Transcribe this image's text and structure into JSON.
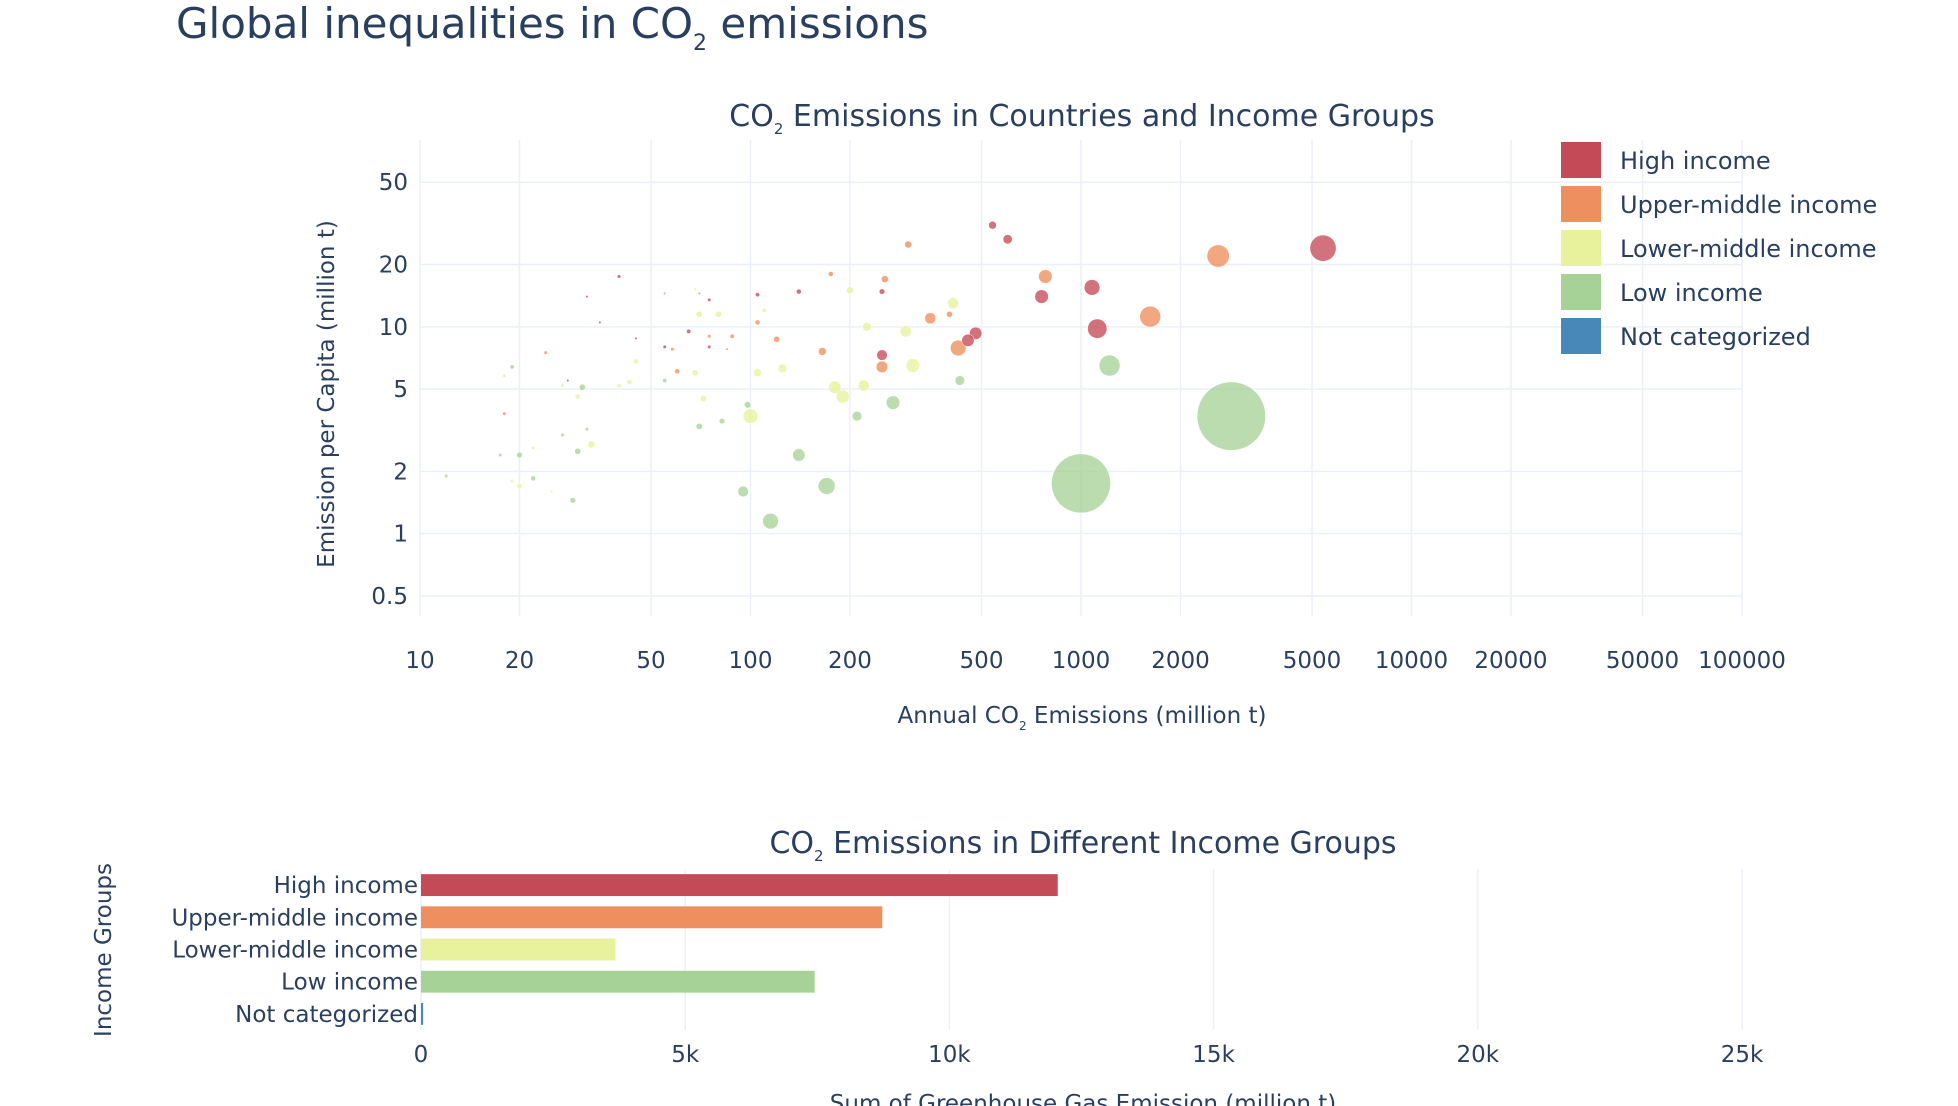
{
  "page": {
    "title_main": "Global inequalities in CO",
    "title_sub": "2",
    "title_rest": " emissions"
  },
  "chart_data": [
    {
      "type": "scatter",
      "title": {
        "pre": "CO",
        "sub": "2",
        "post": " Emissions in Countries and Income Groups"
      },
      "xlabel": {
        "pre": "Annual CO",
        "sub": "2",
        "post": " Emissions (million t)"
      },
      "ylabel": "Emission per Capita (million t)",
      "x_scale": "log",
      "y_scale": "log",
      "xlim": [
        10,
        100000
      ],
      "ylim": [
        0.4,
        80
      ],
      "x_ticks": [
        10,
        20,
        50,
        100,
        200,
        500,
        1000,
        2000,
        5000,
        10000,
        20000,
        50000,
        100000
      ],
      "x_tick_labels": [
        "10",
        "20",
        "50",
        "100",
        "200",
        "500",
        "1000",
        "2000",
        "5000",
        "10000",
        "20000",
        "50000",
        "100000"
      ],
      "y_ticks": [
        0.5,
        1,
        2,
        5,
        10,
        20,
        50
      ],
      "y_tick_labels": [
        "0.5",
        "1",
        "2",
        "5",
        "10",
        "20",
        "50"
      ],
      "grid": true,
      "legend_position": "top-right",
      "legend": [
        {
          "name": "High income",
          "color": "#c44a57"
        },
        {
          "name": "Upper-middle income",
          "color": "#ed8f5e"
        },
        {
          "name": "Lower-middle income",
          "color": "#e8f29c"
        },
        {
          "name": "Low income",
          "color": "#a6d297"
        },
        {
          "name": "Not categorized",
          "color": "#4888b8"
        }
      ],
      "series": [
        {
          "name": "High income",
          "color": "#c44a57",
          "points": [
            [
              5400,
              24,
              110
            ],
            [
              1120,
              9.8,
              60
            ],
            [
              1080,
              15.5,
              40
            ],
            [
              760,
              14,
              30
            ],
            [
              600,
              26.5,
              14
            ],
            [
              540,
              31,
              10
            ],
            [
              480,
              9.3,
              25
            ],
            [
              455,
              8.6,
              25
            ],
            [
              250,
              7.3,
              18
            ],
            [
              250,
              14.8,
              5
            ],
            [
              140,
              14.8,
              4
            ],
            [
              105,
              14.3,
              3
            ],
            [
              75,
              13.5,
              2
            ],
            [
              65,
              9.5,
              3
            ],
            [
              55,
              8,
              2
            ],
            [
              40,
              17.5,
              2
            ],
            [
              35,
              10.5,
              1
            ],
            [
              32,
              14,
              1
            ],
            [
              28,
              5.5,
              1
            ],
            [
              75,
              8,
              2
            ],
            [
              45,
              8.8,
              1
            ]
          ]
        },
        {
          "name": "Upper-middle income",
          "color": "#ed8f5e",
          "points": [
            [
              2600,
              22,
              80
            ],
            [
              1620,
              11.2,
              70
            ],
            [
              780,
              17.5,
              30
            ],
            [
              425,
              7.9,
              40
            ],
            [
              350,
              11,
              20
            ],
            [
              300,
              25,
              8
            ],
            [
              250,
              6.4,
              22
            ],
            [
              255,
              17,
              8
            ],
            [
              165,
              7.6,
              10
            ],
            [
              120,
              8.7,
              6
            ],
            [
              105,
              10.5,
              4
            ],
            [
              88,
              9,
              3
            ],
            [
              75,
              9,
              2
            ],
            [
              60,
              6.1,
              4
            ],
            [
              58,
              7.8,
              2
            ],
            [
              175,
              18,
              4
            ],
            [
              400,
              11.5,
              6
            ],
            [
              70,
              14.5,
              1
            ],
            [
              24,
              7.5,
              2
            ],
            [
              55,
              14.5,
              1
            ],
            [
              18,
              3.8,
              2
            ],
            [
              85,
              7.8,
              1
            ]
          ]
        },
        {
          "name": "Lower-middle income",
          "color": "#e8f29c",
          "points": [
            [
              410,
              13,
              20
            ],
            [
              310,
              6.5,
              30
            ],
            [
              295,
              9.5,
              20
            ],
            [
              225,
              10,
              12
            ],
            [
              220,
              5.2,
              20
            ],
            [
              200,
              15,
              8
            ],
            [
              190,
              4.6,
              28
            ],
            [
              180,
              5.1,
              25
            ],
            [
              125,
              6.3,
              12
            ],
            [
              105,
              6,
              10
            ],
            [
              100,
              3.7,
              35
            ],
            [
              80,
              11.5,
              6
            ],
            [
              72,
              4.5,
              6
            ],
            [
              68,
              6,
              6
            ],
            [
              70,
              11.5,
              6
            ],
            [
              45,
              6.8,
              4
            ],
            [
              40,
              5.2,
              3
            ],
            [
              33,
              2.7,
              8
            ],
            [
              30,
              4.6,
              4
            ],
            [
              27,
              5.2,
              2
            ],
            [
              22,
              2.6,
              2
            ],
            [
              20,
              1.7,
              4
            ],
            [
              19,
              1.8,
              2
            ],
            [
              18,
              5.8,
              2
            ],
            [
              110,
              12,
              3
            ],
            [
              25,
              1.6,
              1
            ],
            [
              43,
              5.4,
              4
            ],
            [
              68,
              15.2,
              1
            ]
          ]
        },
        {
          "name": "Low income",
          "color": "#a6d297",
          "points": [
            [
              2850,
              3.7,
              750
            ],
            [
              1000,
              1.75,
              560
            ],
            [
              1220,
              6.5,
              70
            ],
            [
              430,
              5.5,
              15
            ],
            [
              270,
              4.3,
              30
            ],
            [
              210,
              3.7,
              15
            ],
            [
              170,
              1.7,
              45
            ],
            [
              140,
              2.4,
              25
            ],
            [
              115,
              1.15,
              40
            ],
            [
              95,
              1.6,
              18
            ],
            [
              98,
              4.2,
              7
            ],
            [
              82,
              3.5,
              5
            ],
            [
              70,
              3.3,
              6
            ],
            [
              55,
              5.5,
              3
            ],
            [
              31,
              5.1,
              6
            ],
            [
              30,
              2.5,
              6
            ],
            [
              29,
              1.45,
              5
            ],
            [
              22,
              1.85,
              4
            ],
            [
              20,
              2.4,
              5
            ],
            [
              19,
              6.4,
              3
            ],
            [
              17.5,
              2.4,
              2
            ],
            [
              12,
              1.9,
              2
            ],
            [
              27,
              3,
              2
            ],
            [
              32,
              3.2,
              2
            ]
          ]
        },
        {
          "name": "Not categorized",
          "color": "#4888b8",
          "points": []
        }
      ]
    },
    {
      "type": "bar",
      "orientation": "horizontal",
      "title": {
        "pre": "CO",
        "sub": "2",
        "post": " Emissions in Different Income Groups"
      },
      "xlabel": "Sum of Greenhouse Gas Emission (million t)",
      "ylabel": "Income Groups",
      "xlim": [
        0,
        25000
      ],
      "x_ticks": [
        0,
        5000,
        10000,
        15000,
        20000,
        25000
      ],
      "x_tick_labels": [
        "0",
        "5k",
        "10k",
        "15k",
        "20k",
        "25k"
      ],
      "grid": true,
      "categories": [
        "High income",
        "Upper-middle income",
        "Lower-middle income",
        "Low income",
        "Not categorized"
      ],
      "values": [
        12050,
        8730,
        3680,
        7450,
        40
      ],
      "colors": [
        "#c44a57",
        "#ed8f5e",
        "#e8f29c",
        "#a6d297",
        "#4888b8"
      ]
    }
  ]
}
